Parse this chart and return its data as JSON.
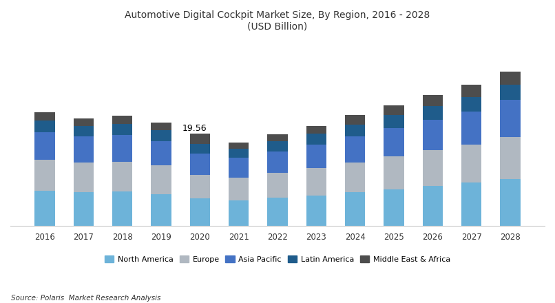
{
  "years": [
    2016,
    2017,
    2018,
    2019,
    2020,
    2021,
    2022,
    2023,
    2024,
    2025,
    2026,
    2027,
    2028
  ],
  "north_america": [
    7.5,
    7.2,
    7.3,
    6.8,
    5.8,
    5.5,
    6.0,
    6.5,
    7.2,
    7.8,
    8.5,
    9.2,
    10.0
  ],
  "europe": [
    6.5,
    6.2,
    6.3,
    6.0,
    5.0,
    4.8,
    5.2,
    5.7,
    6.3,
    6.9,
    7.5,
    8.0,
    8.8
  ],
  "asia_pacific": [
    5.8,
    5.5,
    5.6,
    5.2,
    4.5,
    4.2,
    4.6,
    5.0,
    5.5,
    6.0,
    6.5,
    7.0,
    7.8
  ],
  "latin_america": [
    2.5,
    2.3,
    2.4,
    2.2,
    2.0,
    1.9,
    2.1,
    2.3,
    2.5,
    2.7,
    2.9,
    3.1,
    3.3
  ],
  "mea": [
    1.8,
    1.6,
    1.7,
    1.6,
    2.26,
    1.3,
    1.5,
    1.7,
    1.9,
    2.1,
    2.3,
    2.5,
    2.7
  ],
  "annotation_year": 2020,
  "annotation_text": "19.56",
  "colors": {
    "north_america": "#6DB3D9",
    "europe": "#B0B8C1",
    "asia_pacific": "#4472C4",
    "latin_america": "#1F5C8B",
    "mea": "#4D4D4D"
  },
  "title_line1": "Automotive Digital Cockpit Market Size, By Region, 2016 - 2028",
  "title_line2": "(USD Billion)",
  "legend_labels": [
    "North America",
    "Europe",
    "Asia Pacific",
    "Latin America",
    "Middle East & Africa"
  ],
  "source_text": "Source: Polaris  Market Research Analysis",
  "ylim": [
    0,
    40
  ]
}
